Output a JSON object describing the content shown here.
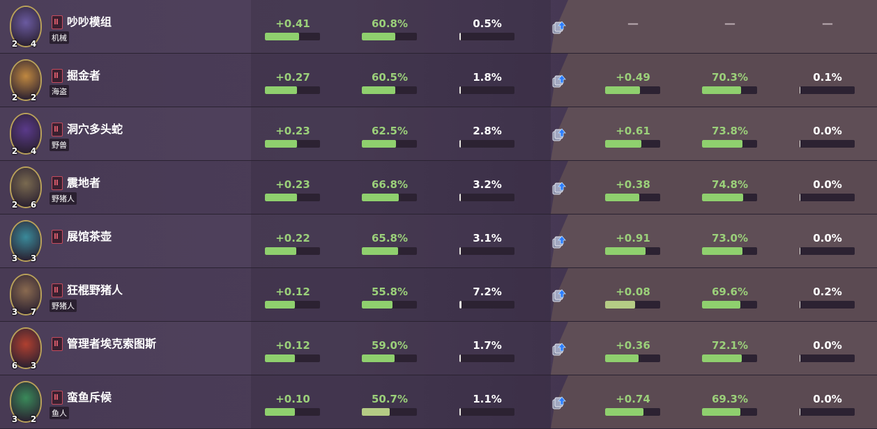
{
  "colors": {
    "green": "#8fd06e",
    "text_green": "#9bd07a",
    "bar_bg": "#2c2232"
  },
  "rows": [
    {
      "name": "吵吵模组",
      "tag": "机械",
      "atk": "2",
      "hp": "4",
      "m1": "+0.41",
      "m1v": 0.62,
      "m2": "60.8%",
      "m2v": 0.608,
      "m3": "0.5%",
      "m3v": 0.005,
      "r1": "—",
      "r1v": null,
      "r2": "—",
      "r2v": null,
      "r3": "—",
      "r3v": null,
      "art": "#6a5aa0"
    },
    {
      "name": "掘金者",
      "tag": "海盗",
      "atk": "2",
      "hp": "2",
      "m1": "+0.27",
      "m1v": 0.58,
      "m2": "60.5%",
      "m2v": 0.605,
      "m3": "1.8%",
      "m3v": 0.018,
      "r1": "+0.49",
      "r1v": 0.63,
      "r2": "70.3%",
      "r2v": 0.703,
      "r3": "0.1%",
      "r3v": 0.001,
      "art": "#c08840"
    },
    {
      "name": "洞穴多头蛇",
      "tag": "野兽",
      "atk": "2",
      "hp": "4",
      "m1": "+0.23",
      "m1v": 0.58,
      "m2": "62.5%",
      "m2v": 0.625,
      "m3": "2.8%",
      "m3v": 0.028,
      "r1": "+0.61",
      "r1v": 0.66,
      "r2": "73.8%",
      "r2v": 0.738,
      "r3": "0.0%",
      "r3v": 0.0,
      "art": "#5a3a8a"
    },
    {
      "name": "震地者",
      "tag": "野猪人",
      "atk": "2",
      "hp": "6",
      "m1": "+0.23",
      "m1v": 0.58,
      "m2": "66.8%",
      "m2v": 0.668,
      "m3": "3.2%",
      "m3v": 0.032,
      "r1": "+0.38",
      "r1v": 0.62,
      "r2": "74.8%",
      "r2v": 0.748,
      "r3": "0.0%",
      "r3v": 0.0,
      "art": "#7a6a50"
    },
    {
      "name": "展馆茶壶",
      "tag": "",
      "atk": "3",
      "hp": "3",
      "m1": "+0.22",
      "m1v": 0.57,
      "m2": "65.8%",
      "m2v": 0.658,
      "m3": "3.1%",
      "m3v": 0.031,
      "r1": "+0.91",
      "r1v": 0.73,
      "r2": "73.0%",
      "r2v": 0.73,
      "r3": "0.0%",
      "r3v": 0.0,
      "art": "#3a8a9a"
    },
    {
      "name": "狂棍野猪人",
      "tag": "野猪人",
      "atk": "3",
      "hp": "7",
      "m1": "+0.12",
      "m1v": 0.55,
      "m2": "55.8%",
      "m2v": 0.558,
      "m3": "7.2%",
      "m3v": 0.072,
      "r1": "+0.08",
      "r1v": 0.54,
      "r2": "69.6%",
      "r2v": 0.696,
      "r3": "0.2%",
      "r3v": 0.002,
      "art": "#8a6a50",
      "r1pale": true
    },
    {
      "name": "管理者埃克索图斯",
      "tag": "",
      "atk": "6",
      "hp": "3",
      "m1": "+0.12",
      "m1v": 0.55,
      "m2": "59.0%",
      "m2v": 0.59,
      "m3": "1.7%",
      "m3v": 0.017,
      "r1": "+0.36",
      "r1v": 0.61,
      "r2": "72.1%",
      "r2v": 0.721,
      "r3": "0.0%",
      "r3v": 0.0,
      "art": "#b04030"
    },
    {
      "name": "蛮鱼斥候",
      "tag": "鱼人",
      "atk": "3",
      "hp": "2",
      "m1": "+0.10",
      "m1v": 0.54,
      "m2": "50.7%",
      "m2v": 0.507,
      "m3": "1.1%",
      "m3v": 0.011,
      "r1": "+0.74",
      "r1v": 0.69,
      "r2": "69.3%",
      "r2v": 0.693,
      "r3": "0.0%",
      "r3v": 0.0,
      "art": "#3a8a5a",
      "m2pale": true
    }
  ]
}
